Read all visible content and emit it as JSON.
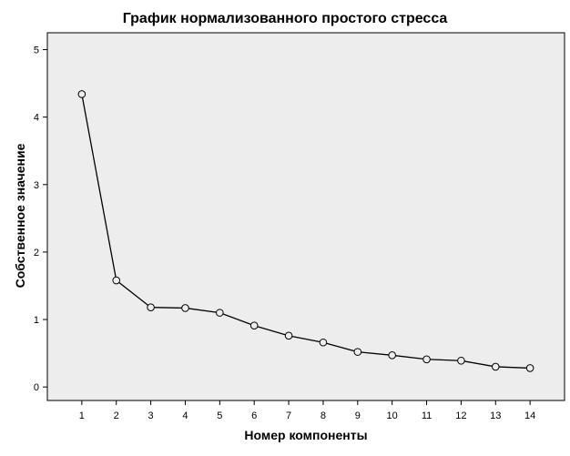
{
  "chart_data": {
    "type": "line",
    "title": "График нормализованного простого стресса",
    "xlabel": "Номер компоненты",
    "ylabel": "Собственное значение",
    "x": [
      1,
      2,
      3,
      4,
      5,
      6,
      7,
      8,
      9,
      10,
      11,
      12,
      13,
      14
    ],
    "series": [
      {
        "values": [
          4.34,
          1.58,
          1.18,
          1.17,
          1.1,
          0.91,
          0.76,
          0.66,
          0.52,
          0.47,
          0.41,
          0.39,
          0.3,
          0.28
        ]
      }
    ],
    "xlim": [
      0,
      15
    ],
    "ylim": [
      -0.2,
      5.25
    ],
    "xticks": [
      "1",
      "2",
      "3",
      "4",
      "5",
      "6",
      "7",
      "8",
      "9",
      "10",
      "11",
      "12",
      "13",
      "14"
    ],
    "yticks": [
      "0",
      "1",
      "2",
      "3",
      "4",
      "5"
    ],
    "grid": false,
    "legend": "none",
    "colors": {
      "plot_bg": "#ededed",
      "line": "#000000",
      "marker_face": "#ededed"
    }
  }
}
